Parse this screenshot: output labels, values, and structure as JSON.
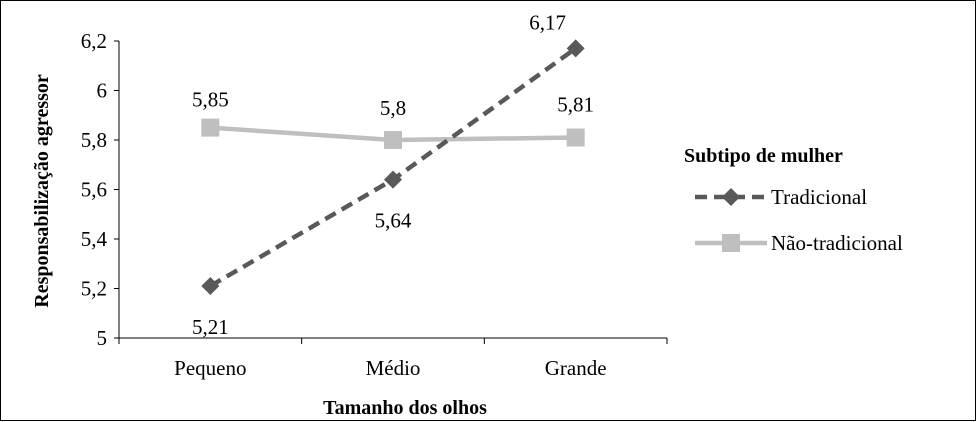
{
  "chart_data": {
    "type": "line",
    "categories": [
      "Pequeno",
      "Médio",
      "Grande"
    ],
    "series": [
      {
        "name": "Tradicional",
        "values": [
          5.21,
          5.64,
          6.17
        ],
        "labels": [
          "5,21",
          "5,64",
          "6,17"
        ],
        "color": "#595959",
        "dash": "dashed",
        "marker": "diamond"
      },
      {
        "name": "Não-tradicional",
        "values": [
          5.85,
          5.8,
          5.81
        ],
        "labels": [
          "5,85",
          "5,8",
          "5,81"
        ],
        "color": "#bfbfbf",
        "dash": "solid",
        "marker": "square"
      }
    ],
    "xlabel": "Tamanho dos olhos",
    "ylabel": "Responsabilização agressor",
    "ylim": [
      5,
      6.2
    ],
    "yticks": [
      5,
      5.2,
      5.4,
      5.6,
      5.8,
      6,
      6.2
    ],
    "ytick_labels": [
      "5",
      "5,2",
      "5,4",
      "5,6",
      "5,8",
      "6",
      "6,2"
    ],
    "grid": false,
    "legend": {
      "title": "Subtipo de mulher",
      "position": "right"
    }
  }
}
